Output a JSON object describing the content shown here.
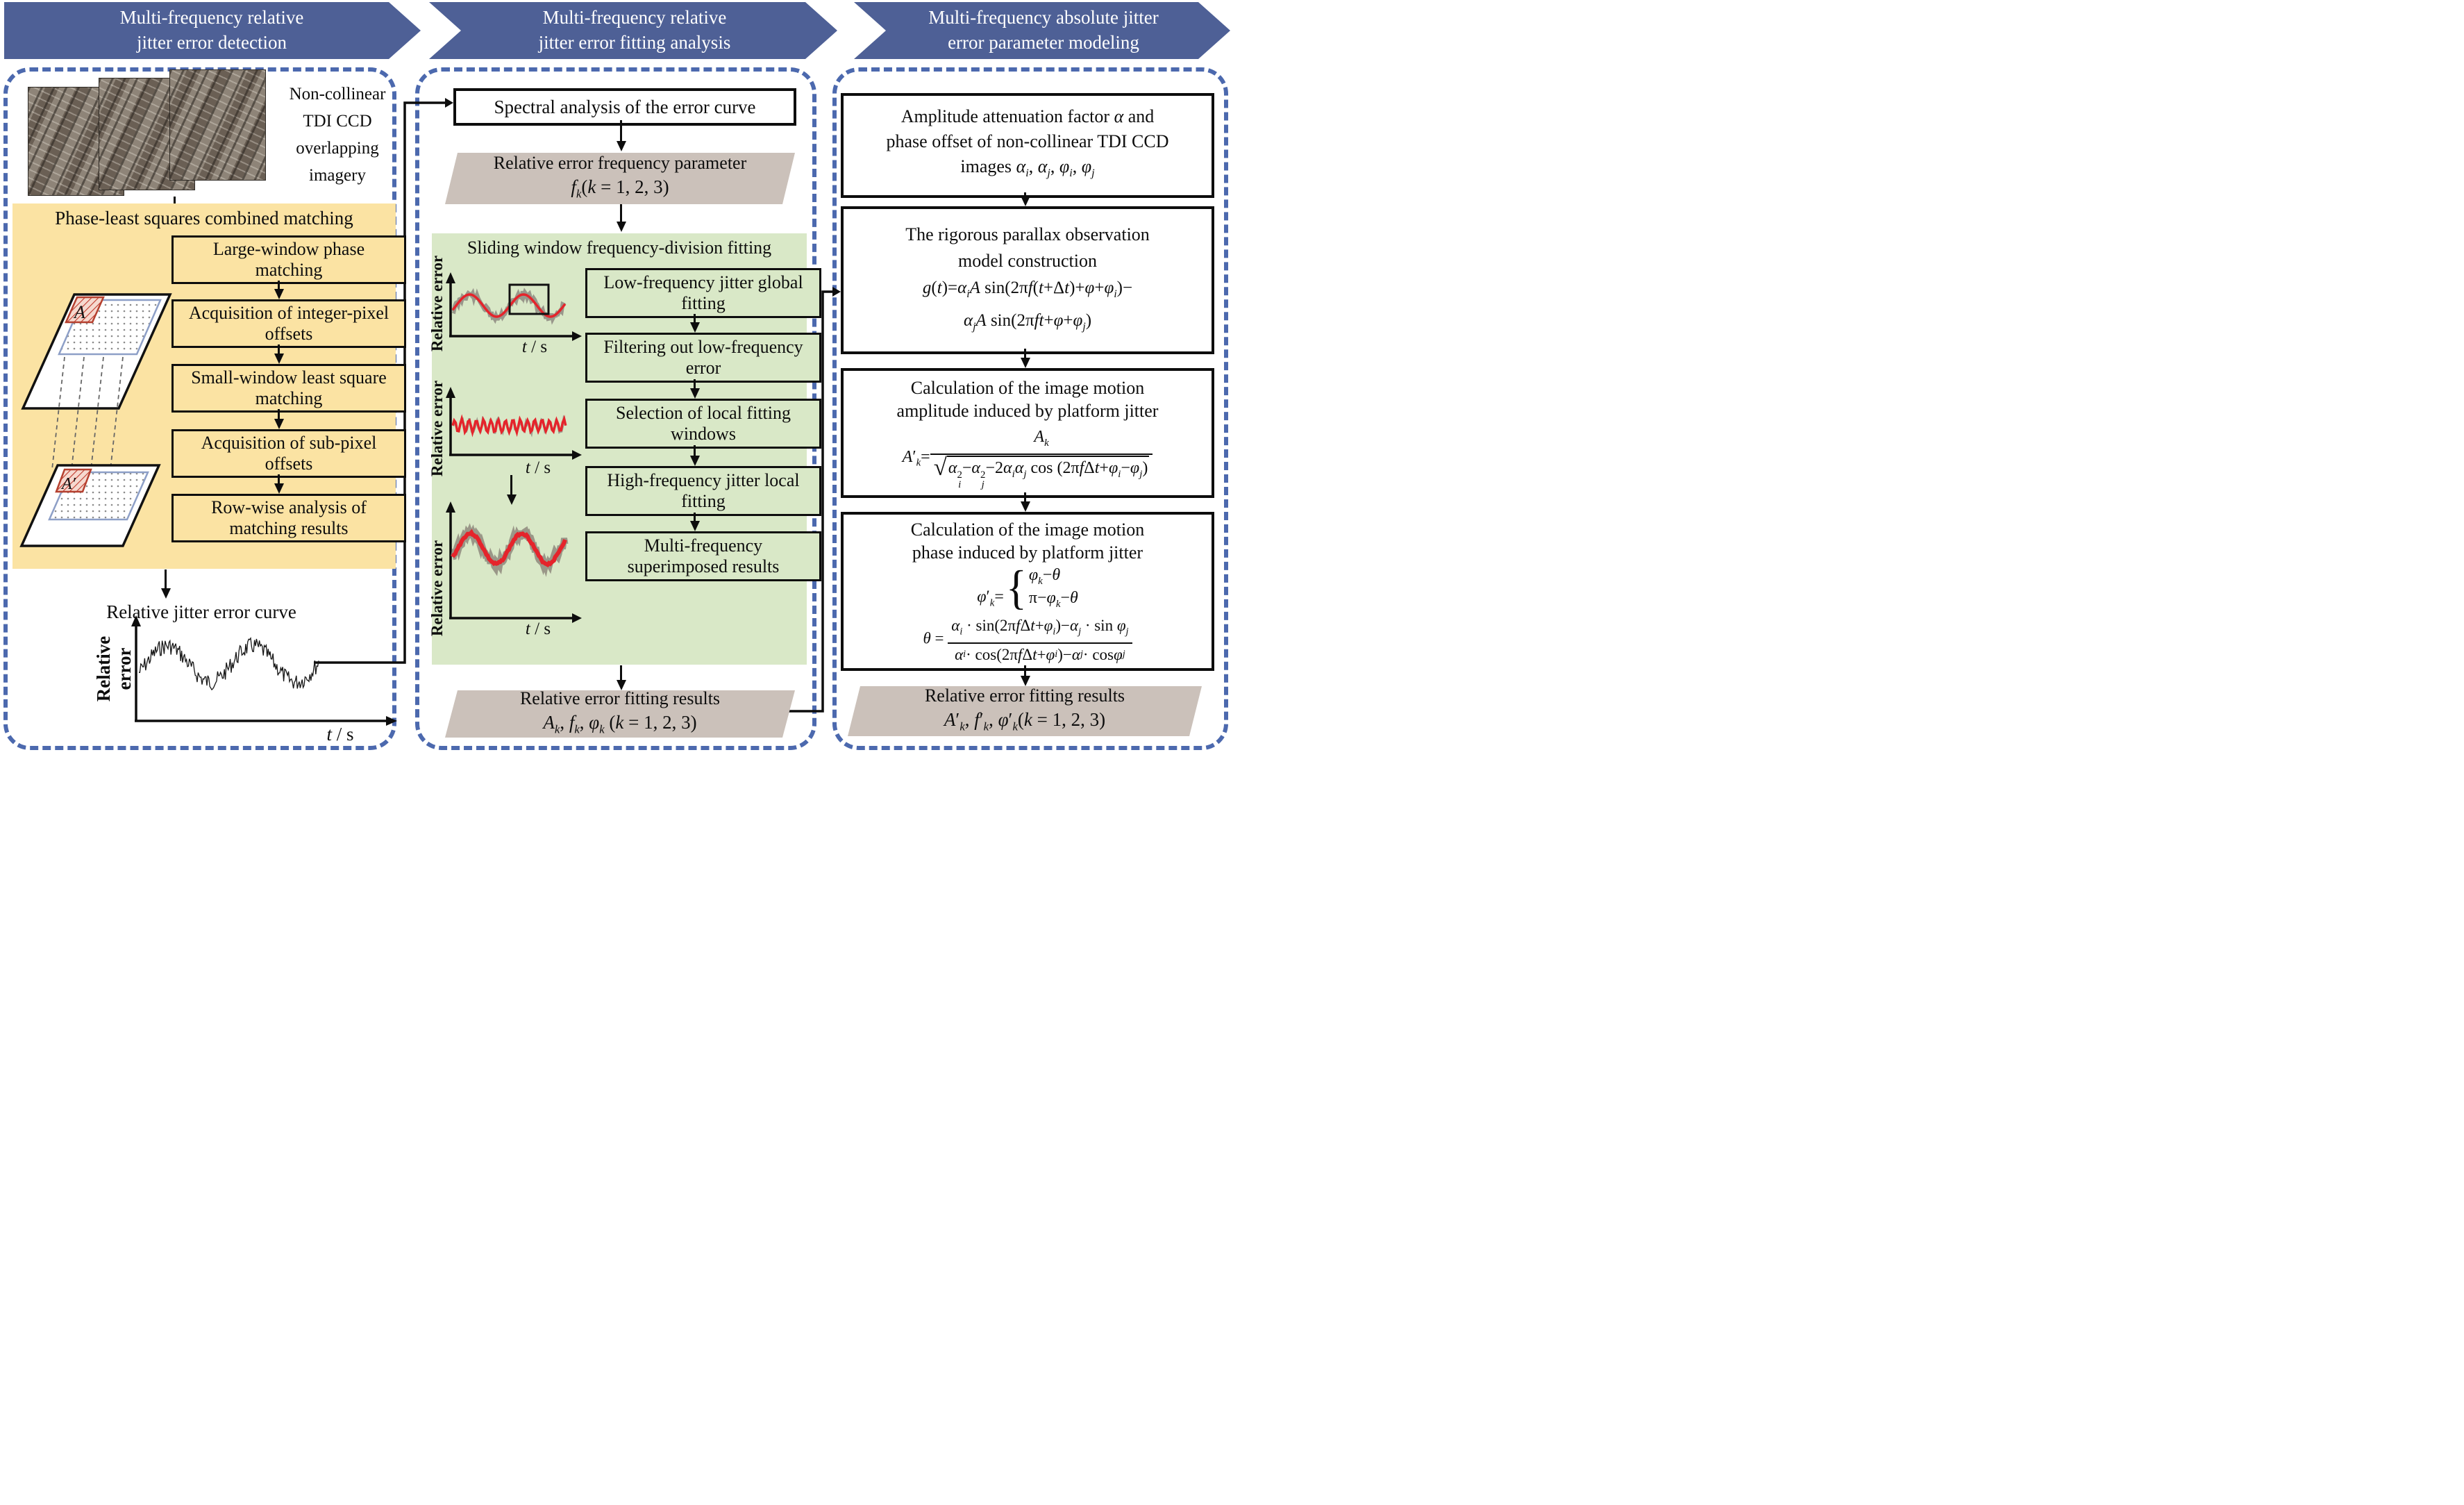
{
  "banners": [
    {
      "label_html": "Multi-frequency relative<br>jitter error detection"
    },
    {
      "label_html": "Multi-frequency relative<br>jitter error fitting analysis"
    },
    {
      "label_html": "Multi-frequency absolute jitter<br>error parameter modeling"
    }
  ],
  "left": {
    "imagery_caption_html": "Non-collinear<br>TDI CCD<br>overlapping<br>imagery",
    "matching_title": "Phase-least squares combined matching",
    "steps": [
      "Large-window phase matching",
      "Acquisition of integer-pixel offsets",
      "Small-window least square matching",
      "Acquisition of sub-pixel offsets",
      "Row-wise analysis of matching results"
    ],
    "diagram": {
      "window_a": "A",
      "window_a_prime": "A′"
    },
    "curve_caption": "Relative jitter error curve",
    "plot": {
      "ylabel_html": "Relative<br>error",
      "xlabel_html": "<i>t</i> / s"
    }
  },
  "middle": {
    "spectral_box": "Spectral analysis of the error curve",
    "freq_param": {
      "line1": "Relative error frequency parameter",
      "line2_html": "<i>f</i><sub><i>k</i></sub>(<i>k</i> = 1, 2, 3)"
    },
    "sliding_title": "Sliding window frequency-division fitting",
    "steps": [
      "Low-frequency jitter global fitting",
      "Filtering out low-frequency error",
      "Selection of local fitting windows",
      "High-frequency jitter local fitting",
      "Multi-frequency superimposed results"
    ],
    "plots": [
      {
        "ylabel": "Relative error",
        "xlabel_html": "<i>t</i> / s"
      },
      {
        "ylabel": "Relative error",
        "xlabel_html": "<i>t</i> / s"
      },
      {
        "ylabel": "Relative error",
        "xlabel_html": "<i>t</i> / s"
      }
    ],
    "fitting_results": {
      "line1": "Relative error fitting results",
      "line2_html": "<i>A</i><sub><i>k</i></sub>, <i>f</i><sub><i>k</i></sub>, <i>φ</i><sub><i>k</i></sub> (<i>k</i> = 1, 2, 3)"
    }
  },
  "right": {
    "box1_html": "Amplitude attenuation factor <i>α</i> and<br>phase offset of non-collinear TDI CCD<br>images <i>α</i><sub><i>i</i></sub>, <i>α</i><sub><i>j</i></sub>, <i>φ</i><sub><i>i</i></sub>, <i>φ</i><sub><i>j</i></sub>",
    "box2_html": "The rigorous parallax observation<br>model construction<br><span class=\"fml\"><i>g</i>(<i>t</i>)=<i>α</i><sub><i>i</i></sub><i>A</i> sin(2π<i>f</i>(<i>t</i>+Δ<i>t</i>)+<i>φ</i>+<i>φ</i><sub><i>i</i></sub>)−<br><i>α</i><sub><i>j</i></sub><i>A</i> sin(2π<i>ft</i>+<i>φ</i>+<i>φ</i><sub><i>j</i></sub>)</span>",
    "box3_title_html": "Calculation of the image motion<br>amplitude induced by platform jitter",
    "box3_formula_html": "<i>A</i>′<sub><i>k</i></sub>=<span class=\"frac\"><span class=\"num\"><i>A</i><sub><i>k</i></sub></span><span class=\"den\"><span class=\"rad\">√</span><span class=\"vinc\"><i>α</i><span class=\"ss\"><span>2</span><span><i>i</i></span></span>−<i>α</i><span class=\"ss\"><span>2</span><span><i>j</i></span></span>−2<i>α</i><sub><i>i</i></sub><i>α</i><sub><i>j</i></sub> cos (2π<i>f</i>Δ<i>t</i>+<i>φ</i><sub><i>i</i></sub>−<i>φ</i><sub><i>j</i></sub>)</span></span></span>",
    "box4_title_html": "Calculation of the image motion<br>phase induced by platform jitter",
    "box4_cases_html": "<i>φ</i>′<sub><i>k</i></sub>=<span class=\"cases\"><span class=\"brace\">{</span><span class=\"cstack\"><span><i>φ</i><sub><i>k</i></sub>−<i>θ</i></span><span>π−<i>φ</i><sub><i>k</i></sub>−<i>θ</i></span></span></span>",
    "box4_theta_html": "<i>θ</i> = <span class=\"frac\"><span class=\"num\"><i>α</i><sub><i>i</i></sub> · sin(2π<i>f</i>Δ<i>t</i>+<i>φ</i><sub><i>i</i></sub>)−<i>α</i><sub><i>j</i></sub> · sin <i>φ</i><sub><i>j</i></sub></span><span class=\"den\"><i>α</i><sub><i>i</i></sub> · cos(2π<i>f</i>Δ<i>t</i>+<i>φ</i><sub><i>i</i></sub>)−<i>α</i><sub><i>j</i></sub> · cos <i>φ</i><sub><i>j</i></sub></span></span>",
    "results": {
      "line1": "Relative error fitting results",
      "line2_html": "<i>A</i>′<sub><i>k</i></sub>, <i>f</i>′<sub><i>k</i></sub>, <i>φ</i>′<sub><i>k</i></sub>(<i>k</i> = 1, 2, 3)"
    }
  },
  "colors": {
    "banner": "#4e6096",
    "border": "#4c69ae",
    "yellow": "#fbe3a3",
    "green": "#d9e8c7",
    "gray": "#cbc1ba",
    "red": "#e5242b"
  }
}
